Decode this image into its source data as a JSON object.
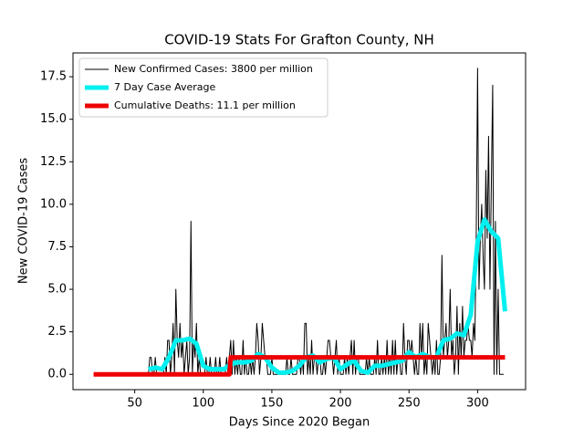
{
  "chart_data": {
    "type": "line",
    "title": "COVID-19 Stats For Grafton County, NH",
    "xlabel": "Days Since 2020 Began",
    "ylabel": "New COVID-19 Cases",
    "xlim": [
      5,
      335
    ],
    "ylim": [
      -0.9,
      18.9
    ],
    "xticks": [
      50,
      100,
      150,
      200,
      250,
      300
    ],
    "yticks": [
      {
        "value": 0,
        "label": "0.0"
      },
      2.5,
      {
        "value": 5,
        "label": "5.0"
      },
      7.5,
      {
        "value": 10,
        "label": "10.0"
      },
      12.5,
      {
        "value": 15,
        "label": "15.0"
      },
      17.5
    ],
    "legend": "upper left",
    "series": [
      {
        "name": "New Confirmed Cases: 3800 per million",
        "color": "#000000",
        "width": 1,
        "x": [
          60,
          61,
          62,
          63,
          64,
          65,
          66,
          67,
          68,
          69,
          70,
          71,
          72,
          73,
          74,
          75,
          76,
          77,
          78,
          79,
          80,
          81,
          82,
          83,
          84,
          85,
          86,
          87,
          88,
          89,
          90,
          91,
          92,
          93,
          94,
          95,
          96,
          97,
          98,
          99,
          100,
          101,
          102,
          103,
          104,
          105,
          106,
          107,
          108,
          109,
          110,
          111,
          112,
          113,
          114,
          115,
          116,
          117,
          118,
          119,
          120,
          121,
          122,
          123,
          124,
          125,
          126,
          127,
          128,
          129,
          130,
          131,
          132,
          133,
          134,
          135,
          136,
          137,
          138,
          139,
          140,
          141,
          142,
          143,
          144,
          145,
          146,
          147,
          148,
          149,
          150,
          151,
          152,
          153,
          154,
          155,
          156,
          157,
          158,
          159,
          160,
          161,
          162,
          163,
          164,
          165,
          166,
          167,
          168,
          169,
          170,
          171,
          172,
          173,
          174,
          175,
          176,
          177,
          178,
          179,
          180,
          181,
          182,
          183,
          184,
          185,
          186,
          187,
          188,
          189,
          190,
          191,
          192,
          193,
          194,
          195,
          196,
          197,
          198,
          199,
          200,
          201,
          202,
          203,
          204,
          205,
          206,
          207,
          208,
          209,
          210,
          211,
          212,
          213,
          214,
          215,
          216,
          217,
          218,
          219,
          220,
          221,
          222,
          223,
          224,
          225,
          226,
          227,
          228,
          229,
          230,
          231,
          232,
          233,
          234,
          235,
          236,
          237,
          238,
          239,
          240,
          241,
          242,
          243,
          244,
          245,
          246,
          247,
          248,
          249,
          250,
          251,
          252,
          253,
          254,
          255,
          256,
          257,
          258,
          259,
          260,
          261,
          262,
          263,
          264,
          265,
          266,
          267,
          268,
          269,
          270,
          271,
          272,
          273,
          274,
          275,
          276,
          277,
          278,
          279,
          280,
          281,
          282,
          283,
          284,
          285,
          286,
          287,
          288,
          289,
          290,
          291,
          292,
          293,
          294,
          295,
          296,
          297,
          298,
          299,
          300,
          301,
          302,
          303,
          304,
          305,
          306,
          307,
          308,
          309,
          310,
          311,
          312,
          313,
          314,
          315,
          316,
          317,
          318,
          319
        ],
        "values": [
          0,
          1,
          1,
          0,
          0,
          1,
          0,
          0,
          0,
          0,
          0,
          0,
          1,
          0,
          2,
          2,
          0,
          1,
          3,
          0,
          5,
          2,
          1,
          3,
          1,
          2,
          0,
          1,
          2,
          0,
          1,
          9,
          0,
          2,
          1,
          3,
          0,
          1,
          0,
          0,
          0,
          0,
          1,
          0,
          0,
          1,
          0,
          0,
          0,
          1,
          0,
          0,
          1,
          0,
          0,
          0,
          0,
          1,
          0,
          1,
          2,
          0,
          2,
          0,
          1,
          0,
          1,
          0,
          0,
          2,
          0,
          1,
          0,
          0,
          1,
          0,
          1,
          0,
          1,
          3,
          2,
          0,
          1,
          3,
          2,
          1,
          1,
          0,
          0,
          0,
          1,
          0,
          0,
          0,
          0,
          0,
          0,
          0,
          0,
          0,
          0,
          1,
          0,
          0,
          1,
          0,
          0,
          0,
          0,
          1,
          1,
          0,
          1,
          0,
          3,
          3,
          0,
          1,
          0,
          2,
          0,
          1,
          1,
          0,
          1,
          1,
          0,
          0,
          1,
          0,
          1,
          2,
          2,
          1,
          1,
          0,
          1,
          2,
          0,
          1,
          0,
          0,
          0,
          1,
          0,
          1,
          0,
          1,
          2,
          0,
          2,
          0,
          1,
          1,
          0,
          0,
          0,
          0,
          0,
          1,
          0,
          1,
          0,
          0,
          0,
          1,
          0,
          2,
          0,
          0,
          1,
          0,
          1,
          0,
          2,
          0,
          1,
          0,
          2,
          0,
          2,
          0,
          1,
          1,
          0,
          0,
          3,
          1,
          0,
          2,
          2,
          1,
          2,
          1,
          0,
          1,
          0,
          0,
          3,
          1,
          3,
          0,
          1,
          0,
          3,
          2,
          1,
          0,
          1,
          0,
          2,
          0,
          0,
          1,
          7,
          1,
          2,
          3,
          1,
          2,
          5,
          1,
          2,
          0,
          1,
          4,
          0,
          3,
          1,
          4,
          1,
          2,
          2,
          3,
          2,
          2,
          1,
          3,
          2,
          8,
          18,
          5,
          8,
          10,
          7,
          5,
          12,
          8,
          14,
          5,
          11,
          17,
          0,
          9,
          0,
          5,
          0,
          0,
          0,
          0
        ]
      },
      {
        "name": "7 Day Case Average",
        "color": "#00f0f0",
        "width": 5,
        "x": [
          60,
          65,
          70,
          75,
          80,
          85,
          90,
          95,
          100,
          105,
          110,
          115,
          120,
          125,
          130,
          135,
          140,
          145,
          150,
          155,
          160,
          165,
          170,
          175,
          180,
          185,
          190,
          195,
          200,
          205,
          210,
          215,
          220,
          225,
          230,
          235,
          240,
          245,
          250,
          255,
          260,
          265,
          270,
          275,
          280,
          285,
          290,
          295,
          300,
          305,
          310,
          315,
          320
        ],
        "values": [
          0.3,
          0.4,
          0.3,
          1.0,
          2.0,
          2.0,
          2.1,
          1.8,
          0.5,
          0.3,
          0.3,
          0.3,
          0.6,
          0.7,
          0.7,
          0.8,
          1.2,
          1.0,
          0.4,
          0.1,
          0.1,
          0.2,
          0.5,
          1.0,
          1.1,
          0.7,
          0.9,
          1.0,
          0.3,
          0.6,
          0.8,
          0.2,
          0.1,
          0.5,
          0.5,
          0.6,
          0.7,
          0.8,
          1.3,
          1.0,
          1.2,
          1.0,
          1.0,
          2.0,
          2.1,
          2.4,
          2.3,
          3.5,
          7.8,
          9.1,
          8.4,
          8.0,
          3.7
        ]
      },
      {
        "name": "Cumulative Deaths: 11.1 per million",
        "color": "#ee0000",
        "width": 5,
        "x": [
          20,
          119,
          120,
          320
        ],
        "values": [
          0,
          0,
          1,
          1
        ]
      }
    ]
  }
}
